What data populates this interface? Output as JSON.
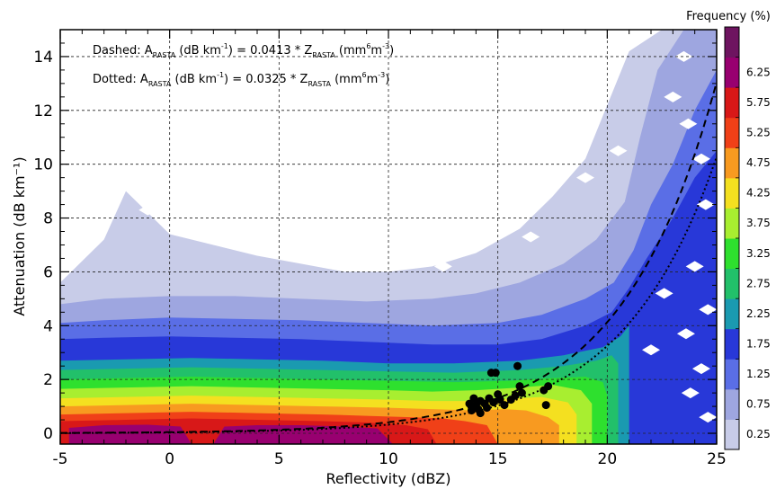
{
  "chart_data": {
    "type": "heatmap",
    "xlabel": "Reflectivity (dBZ)",
    "ylabel": "Attenuation (dB km⁻¹)",
    "xlim": [
      -5,
      25
    ],
    "ylim": [
      -0.4,
      15
    ],
    "x_ticks": [
      "-5",
      "0",
      "5",
      "10",
      "15",
      "20",
      "25"
    ],
    "y_ticks": [
      "0",
      "2",
      "4",
      "6",
      "8",
      "10",
      "12",
      "14"
    ],
    "grid": true,
    "annotations": {
      "dashed": {
        "prefix": "Dashed: A",
        "sub1": "RASTA",
        "mid": " (dB km",
        "sup1": "-1",
        "mid2": ") = 0.0413 * Z",
        "sub2": "RASTA",
        "mid3": " (mm",
        "sup2": "6",
        "mid4": "m",
        "sup3": "-3",
        "end": ")"
      },
      "dotted": {
        "prefix": "Dotted: A",
        "sub1": "RASTA",
        "mid": " (dB km",
        "sup1": "-1",
        "mid2": ") = 0.0325 * Z",
        "sub2": "RASTA",
        "mid3": " (mm",
        "sup2": "6",
        "mid4": "m",
        "sup3": "-3",
        "end": ")"
      }
    },
    "fits": [
      {
        "style": "dashed",
        "coefficient": 0.0413
      },
      {
        "style": "dotted",
        "coefficient": 0.0325
      }
    ],
    "points": [
      {
        "x": 13.7,
        "y": 1.1
      },
      {
        "x": 13.8,
        "y": 0.85
      },
      {
        "x": 14.0,
        "y": 1.05
      },
      {
        "x": 14.1,
        "y": 0.9
      },
      {
        "x": 14.2,
        "y": 1.2
      },
      {
        "x": 14.2,
        "y": 0.75
      },
      {
        "x": 14.4,
        "y": 1.1
      },
      {
        "x": 14.5,
        "y": 0.95
      },
      {
        "x": 14.6,
        "y": 1.3
      },
      {
        "x": 14.7,
        "y": 2.25
      },
      {
        "x": 14.8,
        "y": 1.15
      },
      {
        "x": 14.9,
        "y": 2.25
      },
      {
        "x": 15.0,
        "y": 1.45
      },
      {
        "x": 15.1,
        "y": 1.25
      },
      {
        "x": 15.3,
        "y": 1.05
      },
      {
        "x": 15.6,
        "y": 1.25
      },
      {
        "x": 15.8,
        "y": 1.4
      },
      {
        "x": 15.9,
        "y": 2.5
      },
      {
        "x": 16.0,
        "y": 1.75
      },
      {
        "x": 16.1,
        "y": 1.5
      },
      {
        "x": 17.1,
        "y": 1.6
      },
      {
        "x": 17.2,
        "y": 1.05
      },
      {
        "x": 17.3,
        "y": 1.75
      },
      {
        "x": 13.9,
        "y": 1.3
      }
    ],
    "colorbar": {
      "title": "Frequency (%)",
      "labels": [
        "0.25",
        "0.75",
        "1.25",
        "1.75",
        "2.25",
        "2.75",
        "3.25",
        "3.75",
        "4.25",
        "4.75",
        "5.25",
        "5.75",
        "6.25"
      ],
      "colors": [
        "#c8cce8",
        "#9ea6e0",
        "#5a6ee6",
        "#2838d8",
        "#1a9ab0",
        "#22c06a",
        "#2ee02e",
        "#a8ee30",
        "#f4e020",
        "#f89a20",
        "#f04018",
        "#d81818",
        "#980070",
        "#6e1460"
      ]
    },
    "region_colors": {
      "level0": "#c8cce8",
      "level1": "#9ea6e0",
      "level2": "#5a6ee6",
      "level3": "#2838d8",
      "level4": "#1a9ab0",
      "level5": "#22c06a",
      "level6": "#2ee02e",
      "level7": "#a8ee30",
      "level8": "#f4e020",
      "level9": "#f89a20",
      "level10": "#f04018",
      "level11": "#d81818",
      "level12": "#980070"
    }
  }
}
